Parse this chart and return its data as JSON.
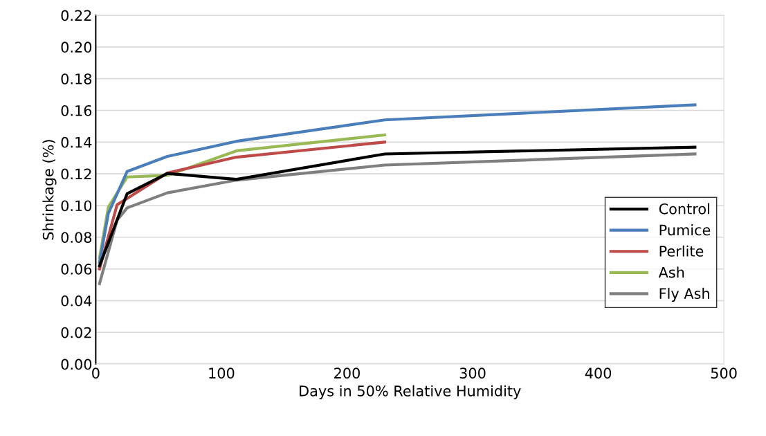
{
  "chart_data": {
    "type": "line",
    "xlabel": "Days in 50% Relative Humidity",
    "ylabel": "Shrinkage (%)",
    "xlim": [
      0,
      500
    ],
    "xticks": [
      0,
      100,
      200,
      300,
      400,
      500
    ],
    "ylim": [
      0,
      0.22
    ],
    "yticks": [
      {
        "value": 0,
        "label": "0.00"
      },
      {
        "value": 0.02,
        "label": "0.02"
      },
      {
        "value": 0.04,
        "label": "0.04"
      },
      {
        "value": 0.06,
        "label": "0.06"
      },
      {
        "value": 0.08,
        "label": "0.08"
      },
      {
        "value": 0.1,
        "label": "0.10"
      },
      {
        "value": 0.12,
        "label": "0.12"
      },
      {
        "value": 0.14,
        "label": "0.14"
      },
      {
        "value": 0.16,
        "label": "0.16"
      },
      {
        "value": 0.18,
        "label": "0.18"
      },
      {
        "value": 0.2,
        "label": "0.20"
      },
      {
        "value": 0.22,
        "label": "0.22"
      }
    ],
    "grid": "y",
    "legend": "right",
    "marker": "none",
    "line_style": "solid",
    "series": [
      {
        "name": "Control",
        "color": "#000000",
        "x": [
          3,
          25,
          57,
          112,
          230,
          477
        ],
        "values": [
          0.062,
          0.1075,
          0.1202,
          0.1165,
          0.1325,
          0.1368
        ]
      },
      {
        "name": "Pumice",
        "color": "#4a7ebb",
        "x": [
          3,
          10,
          25,
          57,
          112,
          230,
          477
        ],
        "values": [
          0.064,
          0.095,
          0.1215,
          0.131,
          0.1405,
          0.154,
          0.1635
        ]
      },
      {
        "name": "Perlite",
        "color": "#be4b48",
        "x": [
          3,
          17,
          25,
          57,
          112,
          230
        ],
        "values": [
          0.06,
          0.1005,
          0.1045,
          0.1205,
          0.1305,
          0.14
        ]
      },
      {
        "name": "Ash",
        "color": "#98b954",
        "x": [
          3,
          10,
          25,
          57,
          112,
          230
        ],
        "values": [
          0.067,
          0.099,
          0.118,
          0.119,
          0.1345,
          0.1445
        ]
      },
      {
        "name": "Fly Ash",
        "color": "#7f7f7f",
        "x": [
          3,
          17,
          25,
          57,
          112,
          230,
          477
        ],
        "values": [
          0.0507,
          0.0907,
          0.0985,
          0.108,
          0.116,
          0.1255,
          0.1325
        ]
      }
    ]
  }
}
